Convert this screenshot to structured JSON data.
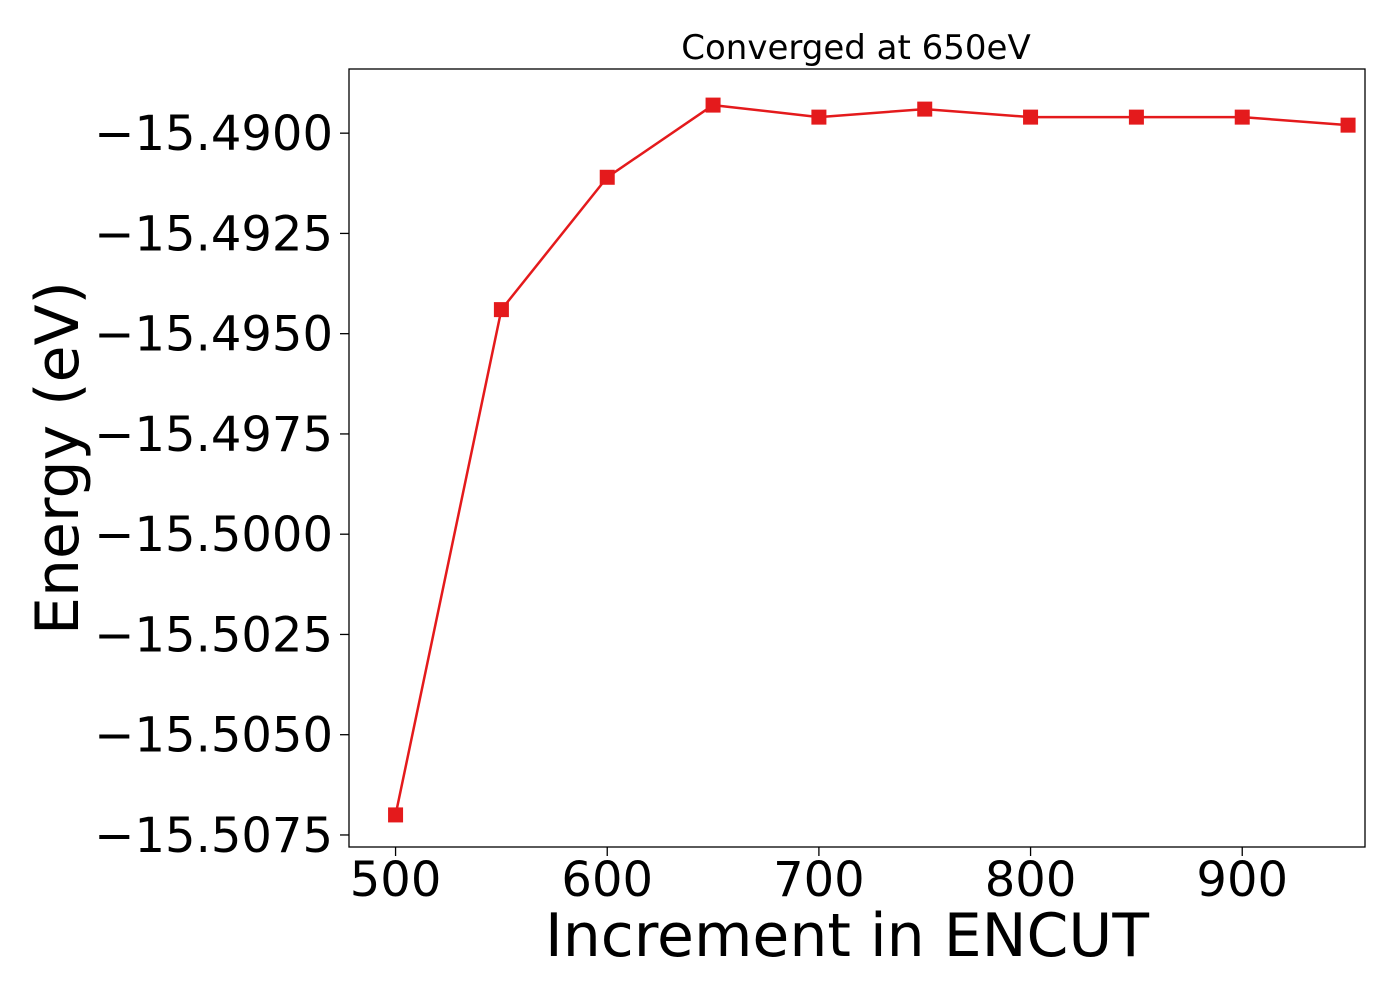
{
  "chart_data": {
    "type": "line",
    "title": "Converged at 650eV",
    "xlabel": "Increment in ENCUT",
    "ylabel": "Energy (eV)",
    "x": [
      500,
      550,
      600,
      650,
      700,
      750,
      800,
      850,
      900,
      950
    ],
    "series": [
      {
        "values": [
          -15.507,
          -15.4944,
          -15.4911,
          -15.4893,
          -15.4896,
          -15.4894,
          -15.4896,
          -15.4896,
          -15.4896,
          -15.4898
        ],
        "color": "#e41a1c",
        "marker": "square"
      }
    ],
    "xlim": [
      478,
      958
    ],
    "ylim": [
      -15.5078,
      -15.4884
    ],
    "xticks": [
      500,
      600,
      700,
      800,
      900
    ],
    "xtick_labels": [
      "500",
      "600",
      "700",
      "800",
      "900"
    ],
    "yticks": [
      -15.49,
      -15.4925,
      -15.495,
      -15.4975,
      -15.5,
      -15.5025,
      -15.505,
      -15.5075
    ],
    "ytick_labels": [
      "−15.4900",
      "−15.4925",
      "−15.4950",
      "−15.4975",
      "−15.5000",
      "−15.5025",
      "−15.5050",
      "−15.5075"
    ],
    "grid": false,
    "legend": false
  }
}
